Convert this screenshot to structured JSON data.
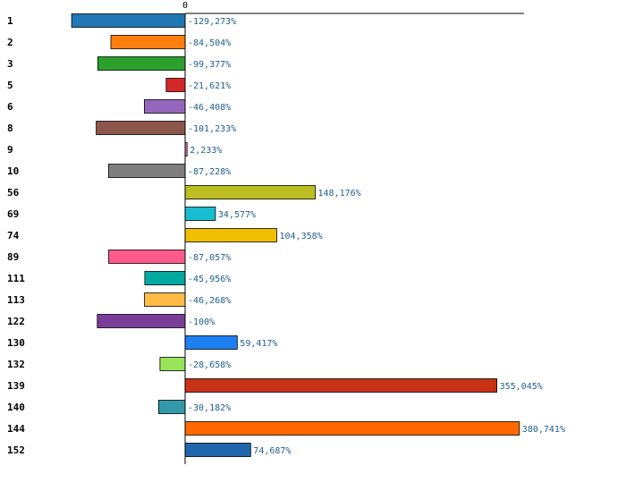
{
  "chart_data": {
    "type": "bar",
    "orientation": "horizontal",
    "zero_tick_label": "0",
    "categories": [
      "1",
      "2",
      "3",
      "5",
      "6",
      "8",
      "9",
      "10",
      "56",
      "69",
      "74",
      "89",
      "111",
      "113",
      "122",
      "130",
      "132",
      "139",
      "140",
      "144",
      "152"
    ],
    "values": [
      -129.273,
      -84.504,
      -99.377,
      -21.621,
      -46.408,
      -101.233,
      2.233,
      -87.228,
      148.176,
      34.577,
      104.358,
      -87.057,
      -45.956,
      -46.268,
      -100,
      59.417,
      -28.658,
      355.045,
      -30.182,
      380.741,
      74.687
    ],
    "value_labels": [
      "-129,273%",
      "-84,504%",
      "-99,377%",
      "-21,621%",
      "-46,408%",
      "-101,233%",
      "2,233%",
      "-87,228%",
      "148,176%",
      "34,577%",
      "104,358%",
      "-87,057%",
      "-45,956%",
      "-46,268%",
      "-100%",
      "59,417%",
      "-28,658%",
      "355,045%",
      "-30,182%",
      "380,741%",
      "74,687%"
    ],
    "colors": [
      "#1f77b4",
      "#ff7f0e",
      "#2ca02c",
      "#d62728",
      "#9467bd",
      "#8c564b",
      "#e377c2",
      "#7f7f7f",
      "#bcbd22",
      "#17becf",
      "#f0c000",
      "#ff5a8c",
      "#00aaa0",
      "#ffbb44",
      "#7a3d9a",
      "#1e7ff0",
      "#99e55a",
      "#c83214",
      "#3399aa",
      "#ff6a00",
      "#2166ac"
    ],
    "xlim": [
      -207,
      386
    ],
    "grid": false,
    "legend": "none"
  }
}
